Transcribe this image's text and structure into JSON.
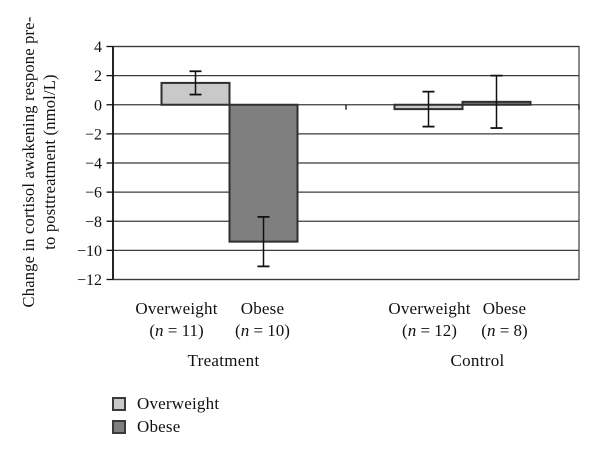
{
  "chart_data": {
    "type": "bar",
    "title": "",
    "ylabel": "Change in cortisol awakening respone pre- to posttreatment (nmol/L)",
    "ylabel_lines": [
      "Change in cortisol awakening respone pre-",
      "to posttreatment (nmol/L)"
    ],
    "ylim": [
      -12,
      4
    ],
    "ytick_step": 2,
    "yticks": [
      4,
      2,
      0,
      -2,
      -4,
      -6,
      -8,
      -10,
      -12
    ],
    "grid": "horizontal",
    "legend_position": "bottom-left",
    "groups": [
      {
        "label": "Treatment",
        "bars": [
          {
            "series": "Overweight",
            "n": 11,
            "n_label": "(n = 11)",
            "value": 1.5,
            "error": 0.8
          },
          {
            "series": "Obese",
            "n": 10,
            "n_label": "(n = 10)",
            "value": -9.4,
            "error": 1.7
          }
        ]
      },
      {
        "label": "Control",
        "bars": [
          {
            "series": "Overweight",
            "n": 12,
            "n_label": "(n = 12)",
            "value": -0.3,
            "error": 1.2
          },
          {
            "series": "Obese",
            "n": 8,
            "n_label": "(n = 8)",
            "value": 0.2,
            "error": 1.8
          }
        ]
      }
    ],
    "series_colors": {
      "Overweight": "#c9c9c9",
      "Obese": "#7f7f7f"
    },
    "bar_border_color": "#2f2f2f",
    "error_bar_color": "#111111",
    "gridline_color": "#3c3c3c",
    "axis_color": "#111111",
    "legend": [
      {
        "label": "Overweight",
        "color": "#c9c9c9"
      },
      {
        "label": "Obese",
        "color": "#7f7f7f"
      }
    ]
  }
}
